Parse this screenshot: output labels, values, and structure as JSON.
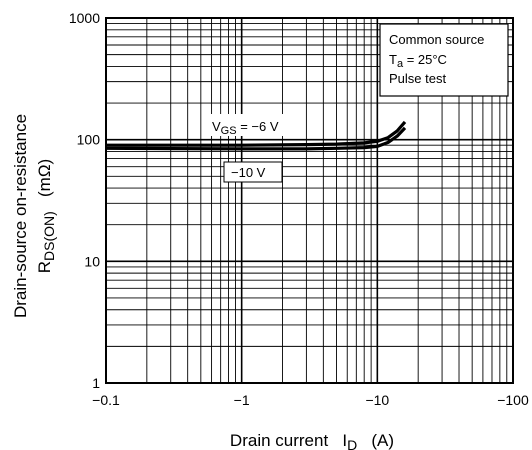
{
  "chart_data": {
    "type": "line",
    "xscale": "log",
    "yscale": "log",
    "x_axis": {
      "label": "Drain current",
      "symbol": "I",
      "symbol_sub": "D",
      "unit": "(A)",
      "range": [
        -0.1,
        -100
      ],
      "ticks": [
        {
          "value": -0.1,
          "label": "−0.1"
        },
        {
          "value": -1,
          "label": "−1"
        },
        {
          "value": -10,
          "label": "−10"
        },
        {
          "value": -100,
          "label": "−100"
        }
      ]
    },
    "y_axis": {
      "label": "Drain-source on-resistance",
      "symbol": "R",
      "symbol_sub": "DS(ON)",
      "unit": "(mΩ)",
      "range": [
        1,
        1000
      ],
      "ticks": [
        {
          "value": 1,
          "label": "1"
        },
        {
          "value": 10,
          "label": "10"
        },
        {
          "value": 100,
          "label": "100"
        },
        {
          "value": 1000,
          "label": "1000"
        }
      ]
    },
    "grid": true,
    "conditions": {
      "line1": "Common source",
      "line2_symbol": "T",
      "line2_sub": "a",
      "line2_rest": " = 25°C",
      "line3": "Pulse test"
    },
    "series": [
      {
        "label_symbol": "V",
        "label_sub": "GS",
        "label_value": " = −6 V",
        "x": [
          -0.1,
          -0.3,
          -1,
          -3,
          -5,
          -8,
          -10,
          -12,
          -14,
          -16
        ],
        "y": [
          90,
          90,
          90,
          91,
          92,
          94,
          97,
          104,
          118,
          140
        ]
      },
      {
        "label_value": "−10 V",
        "x": [
          -0.1,
          -0.3,
          -1,
          -3,
          -5,
          -8,
          -10,
          -12,
          -14,
          -16
        ],
        "y": [
          85,
          84.5,
          84,
          84,
          85,
          86,
          88,
          95,
          107,
          125
        ]
      }
    ]
  }
}
